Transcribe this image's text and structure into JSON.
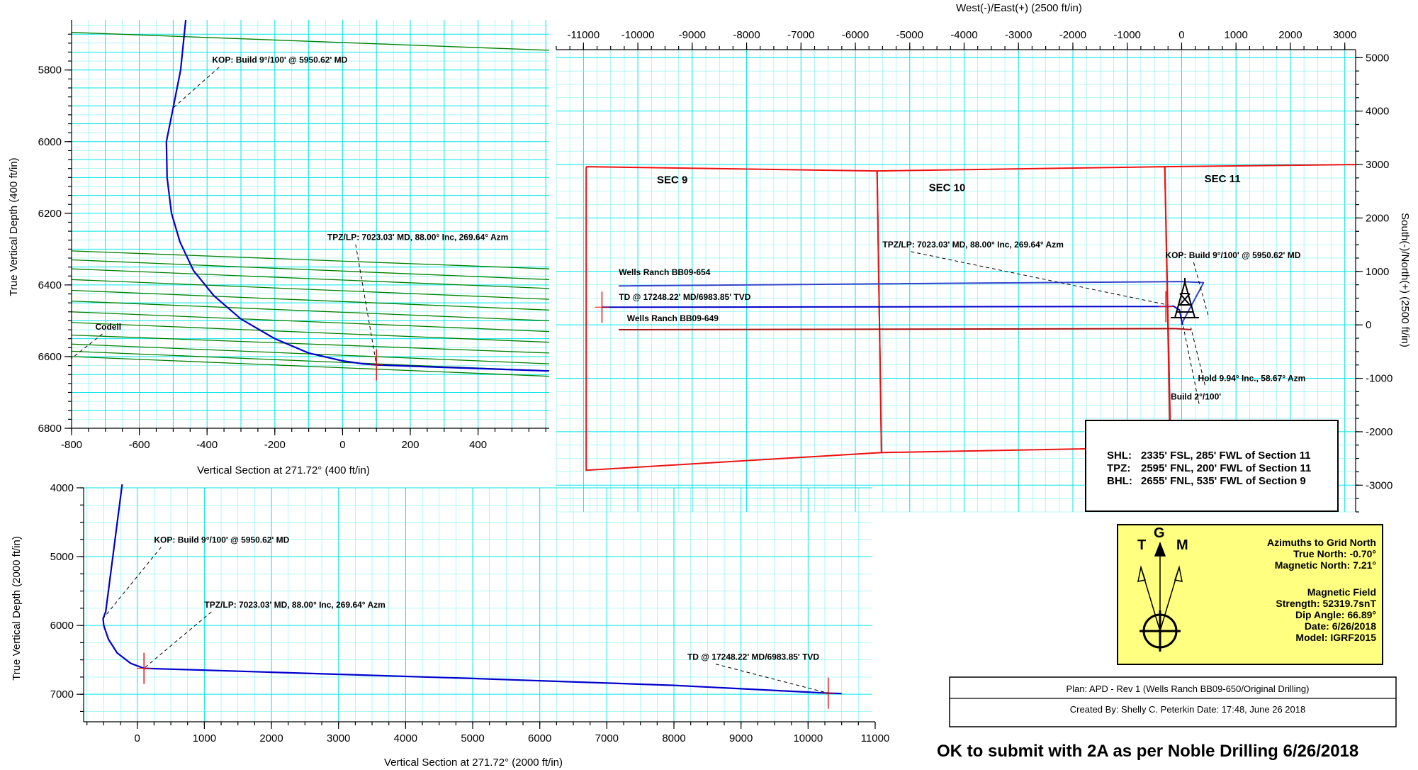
{
  "colors": {
    "grid": "#00e6e6",
    "well_path": "#0000cc",
    "formation": "#008000",
    "section": "#ee1111",
    "well_654": "#3344cc",
    "well_649": "#aa1111",
    "north_box": "#ffff80",
    "note": "#ee0000"
  },
  "chart_data": [
    {
      "id": "vs_detail",
      "type": "line",
      "xlabel": "Vertical Section at 271.72° (400 ft/in)",
      "ylabel": "True Vertical Depth (400 ft/in)",
      "xlim": [
        -800,
        610
      ],
      "ylim": [
        6800,
        5660
      ],
      "y_inverted": true,
      "x_ticks": [
        "-800",
        "-600",
        "-400",
        "-200",
        "0",
        "200",
        "400"
      ],
      "x_tick_values": [
        -800,
        -600,
        -400,
        -200,
        0,
        200,
        400
      ],
      "y_ticks": [
        "5800",
        "6000",
        "6200",
        "6400",
        "6600",
        "6800"
      ],
      "y_tick_values": [
        5800,
        6000,
        6200,
        6400,
        6600,
        6800
      ],
      "grid": true,
      "well_path": {
        "x": [
          -463,
          -478,
          -500,
          -520,
          -518,
          -505,
          -480,
          -440,
          -380,
          -300,
          -200,
          -100,
          0,
          60,
          100,
          300,
          610
        ],
        "y": [
          5660,
          5800,
          5905,
          6000,
          6100,
          6200,
          6280,
          6360,
          6430,
          6495,
          6550,
          6590,
          6612,
          6620,
          6623,
          6630,
          6640
        ]
      },
      "formation_lines": [
        {
          "x": [
            -800,
            610
          ],
          "y": [
            5695,
            5745
          ]
        },
        {
          "x": [
            -800,
            610
          ],
          "y": [
            6305,
            6355
          ]
        },
        {
          "x": [
            -800,
            610
          ],
          "y": [
            6330,
            6385
          ]
        },
        {
          "x": [
            -800,
            610
          ],
          "y": [
            6355,
            6410
          ]
        },
        {
          "x": [
            -800,
            610
          ],
          "y": [
            6385,
            6440
          ]
        },
        {
          "x": [
            -800,
            610
          ],
          "y": [
            6415,
            6470
          ]
        },
        {
          "x": [
            -800,
            610
          ],
          "y": [
            6445,
            6500
          ]
        },
        {
          "x": [
            -800,
            610
          ],
          "y": [
            6475,
            6530
          ]
        },
        {
          "x": [
            -800,
            610
          ],
          "y": [
            6505,
            6560
          ]
        },
        {
          "x": [
            -800,
            610
          ],
          "y": [
            6540,
            6590
          ]
        },
        {
          "x": [
            -800,
            610
          ],
          "y": [
            6565,
            6620
          ]
        },
        {
          "x": [
            -800,
            610
          ],
          "y": [
            6585,
            6640
          ]
        },
        {
          "x": [
            -800,
            610
          ],
          "y": [
            6600,
            6655
          ]
        }
      ],
      "annotations": [
        {
          "text": "KOP: Build 9°/100' @ 5950.62' MD",
          "x": -385,
          "y": 5780,
          "point": [
            -505,
            5910
          ]
        },
        {
          "text": "TPZ/LP: 7023.03' MD, 88.00° Inc, 269.64° Azm",
          "x": -45,
          "y": 6275,
          "point": [
            100,
            6623
          ]
        },
        {
          "text": "Codell",
          "x": -730,
          "y": 6525,
          "point": [
            -800,
            6605
          ]
        }
      ],
      "markers": [
        {
          "x": 100,
          "y": 6623
        }
      ]
    },
    {
      "id": "plan_view",
      "type": "line",
      "xlabel": "West(-)/East(+) (2500 ft/in)",
      "ylabel": "South(-)/North(+) (2500 ft/in)",
      "xlim": [
        -11500,
        3200
      ],
      "ylim": [
        -3500,
        5150
      ],
      "x_ticks": [
        "-11000",
        "-10000",
        "-9000",
        "-8000",
        "-7000",
        "-6000",
        "-5000",
        "-4000",
        "-3000",
        "-2000",
        "-1000",
        "0",
        "1000",
        "2000",
        "3000"
      ],
      "x_tick_values": [
        -11000,
        -10000,
        -9000,
        -8000,
        -7000,
        -6000,
        -5000,
        -4000,
        -3000,
        -2000,
        -1000,
        0,
        1000,
        2000,
        3000
      ],
      "y_ticks": [
        "5000",
        "4000",
        "3000",
        "2000",
        "1000",
        "0",
        "-1000",
        "-2000",
        "-3000"
      ],
      "y_tick_values": [
        5000,
        4000,
        3000,
        2000,
        1000,
        0,
        -1000,
        -2000,
        -3000
      ],
      "grid": true,
      "sections": [
        {
          "label": "SEC 9",
          "x": [
            -10950,
            -5600,
            -5520,
            -10950,
            -10950
          ],
          "y": [
            2960,
            2880,
            -2390,
            -2720,
            2960
          ]
        },
        {
          "label": "SEC 10",
          "x": [
            -5600,
            -310,
            -210,
            -5520,
            -5600
          ],
          "y": [
            2880,
            2960,
            -2290,
            -2390,
            2880
          ]
        },
        {
          "label": "SEC 11",
          "x": [
            -310,
            3200
          ],
          "y": [
            2960,
            3000
          ]
        }
      ],
      "section_labels": [
        {
          "text": "SEC 9",
          "x": -9650,
          "y": 2650
        },
        {
          "text": "SEC 10",
          "x": -4650,
          "y": 2500
        },
        {
          "text": "SEC 11",
          "x": 420,
          "y": 2670
        }
      ],
      "wells": [
        {
          "name": "Wells Ranch BB09-654",
          "x": [
            -10350,
            0,
            400,
            400,
            0,
            10
          ],
          "y": [
            730,
            810,
            790,
            780,
            20,
            0
          ]
        },
        {
          "name": "Wells Ranch BB09-650",
          "x": [
            -10660,
            -200,
            -150,
            -40,
            0,
            20
          ],
          "y": [
            330,
            345,
            350,
            280,
            80,
            0
          ]
        },
        {
          "name": "Wells Ranch BB09-649",
          "x": [
            -10350,
            -100,
            180
          ],
          "y": [
            -90,
            -70,
            -90
          ]
        }
      ],
      "well_labels": [
        {
          "text": "Wells Ranch BB09-654",
          "x": -10350,
          "y": 930
        },
        {
          "text": "Wells Ranch BB09-649",
          "x": -10200,
          "y": 70
        },
        {
          "text": "TD @ 17248.22' MD/6983.85' TVD",
          "x": -10350,
          "y": 470
        }
      ],
      "annotations": [
        {
          "text": "TPZ/LP: 7023.03' MD, 88.00° Inc, 269.64° Azm",
          "x": -5500,
          "y": 1450,
          "point": [
            -290,
            380
          ]
        },
        {
          "text": "KOP: Build 9°/100' @ 5950.62' MD",
          "x": -300,
          "y": 1250,
          "point": [
            500,
            130
          ]
        },
        {
          "text": "Hold 9.94° Inc., 58.67° Azm",
          "x": 300,
          "y": -1050,
          "point": [
            170,
            -50
          ]
        },
        {
          "text": "Build 2°/100'",
          "x": -200,
          "y": -1400,
          "point": [
            30,
            -30
          ]
        }
      ],
      "markers": [
        {
          "x": -10660,
          "y": 330
        },
        {
          "x": -290,
          "y": 340
        }
      ]
    },
    {
      "id": "vs_full",
      "type": "line",
      "xlabel": "Vertical Section at 271.72° (2000 ft/in)",
      "ylabel": "True Vertical Depth (2000 ft/in)",
      "xlim": [
        -800,
        11000
      ],
      "ylim": [
        7400,
        4000
      ],
      "y_inverted": true,
      "x_ticks": [
        "0",
        "1000",
        "2000",
        "3000",
        "4000",
        "5000",
        "6000",
        "7000",
        "8000",
        "9000",
        "10000",
        "11000"
      ],
      "x_tick_values": [
        0,
        1000,
        2000,
        3000,
        4000,
        5000,
        6000,
        7000,
        8000,
        9000,
        10000,
        11000
      ],
      "y_ticks": [
        "4000",
        "5000",
        "6000",
        "7000"
      ],
      "y_tick_values": [
        4000,
        5000,
        6000,
        7000
      ],
      "grid": true,
      "well_path": {
        "x": [
          -225,
          -470,
          -510,
          -500,
          -430,
          -300,
          -100,
          100,
          2000,
          5000,
          8000,
          10300,
          10500
        ],
        "y": [
          3950,
          5800,
          5900,
          6000,
          6200,
          6400,
          6550,
          6623,
          6680,
          6770,
          6870,
          6984,
          6990
        ]
      },
      "annotations": [
        {
          "text": "KOP: Build 9°/100' @ 5950.62' MD",
          "x": 250,
          "y": 4800,
          "point": [
            -510,
            5900
          ]
        },
        {
          "text": "TPZ/LP: 7023.03' MD, 88.00° Inc, 269.64° Azm",
          "x": 1000,
          "y": 5740,
          "point": [
            100,
            6623
          ]
        },
        {
          "text": "TD @ 17248.22' MD/6983.85' TVD",
          "x": 8200,
          "y": 6500,
          "point": [
            10300,
            6984
          ]
        }
      ],
      "markers": [
        {
          "x": 100,
          "y": 6623
        },
        {
          "x": 10300,
          "y": 6984
        }
      ]
    }
  ],
  "location_box": {
    "lines": [
      {
        "label": "SHL:",
        "text": "2335' FSL, 285' FWL of Section 11"
      },
      {
        "label": "TPZ:",
        "text": "2595' FNL, 200' FWL of Section 11"
      },
      {
        "label": "BHL:",
        "text": "2655' FNL, 535' FWL of Section 9"
      }
    ]
  },
  "north_box": {
    "letters": {
      "t": "T",
      "g": "G",
      "m": "M"
    },
    "lines": [
      "Azimuths to Grid North",
      "True North: -0.70°",
      "Magnetic North: 7.21°",
      "",
      "Magnetic Field",
      "Strength: 52319.7snT",
      "Dip Angle: 66.89°",
      "Date: 6/26/2018",
      "Model: IGRF2015"
    ]
  },
  "plan_box": {
    "plan": "Plan: APD - Rev 1 (Wells Ranch BB09-650/Original Drilling)",
    "created": "Created By:  Shelly C. Peterkin    Date:  17:48, June 26 2018"
  },
  "note": "OK to submit with 2A as per Noble Drilling 6/26/2018"
}
